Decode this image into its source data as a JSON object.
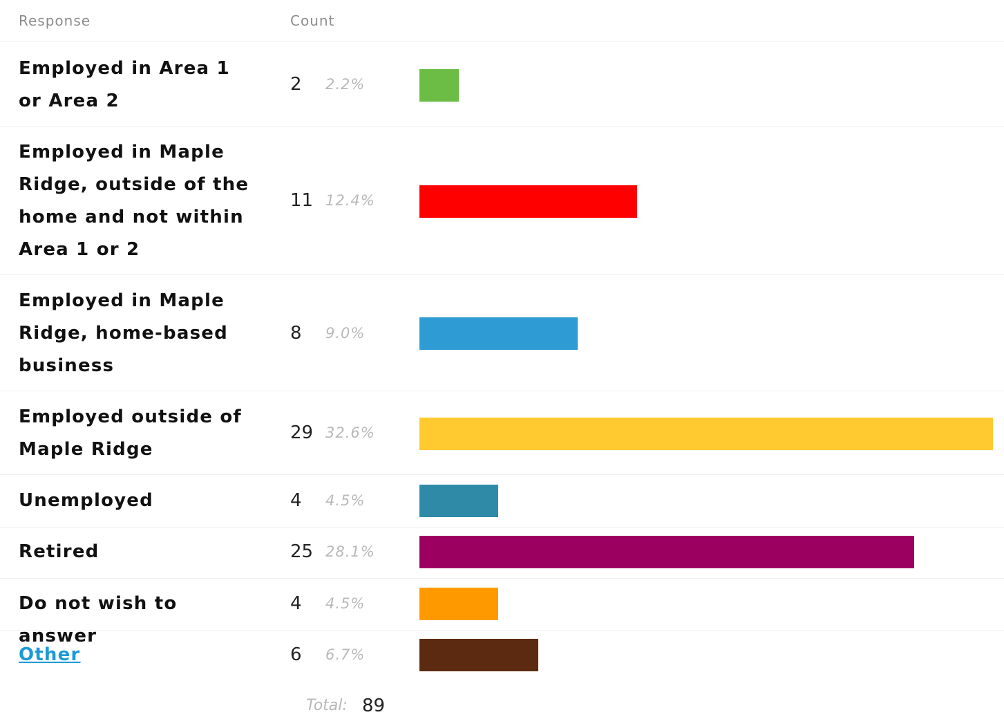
{
  "header": {
    "response": "Response",
    "count": "Count"
  },
  "chart_data": {
    "type": "bar",
    "orientation": "horizontal",
    "categories": [
      "Employed in Area 1 or Area 2",
      "Employed in Maple Ridge, outside of the home and not within Area 1 or 2",
      "Employed in Maple Ridge, home-based business",
      "Employed outside of Maple Ridge",
      "Unemployed",
      "Retired",
      "Do not wish to answer",
      "Other"
    ],
    "values": [
      2,
      11,
      8,
      29,
      4,
      25,
      4,
      6
    ],
    "percents": [
      "2.2%",
      "12.4%",
      "9.0%",
      "32.6%",
      "4.5%",
      "28.1%",
      "4.5%",
      "6.7%"
    ],
    "colors": [
      "#6cbd45",
      "#ff0000",
      "#2f9bd4",
      "#ffc92f",
      "#2f8aa8",
      "#9b0060",
      "#ff9900",
      "#5c2a10"
    ],
    "xlim": [
      0,
      29
    ],
    "total_label": "Total:",
    "total": 89
  }
}
